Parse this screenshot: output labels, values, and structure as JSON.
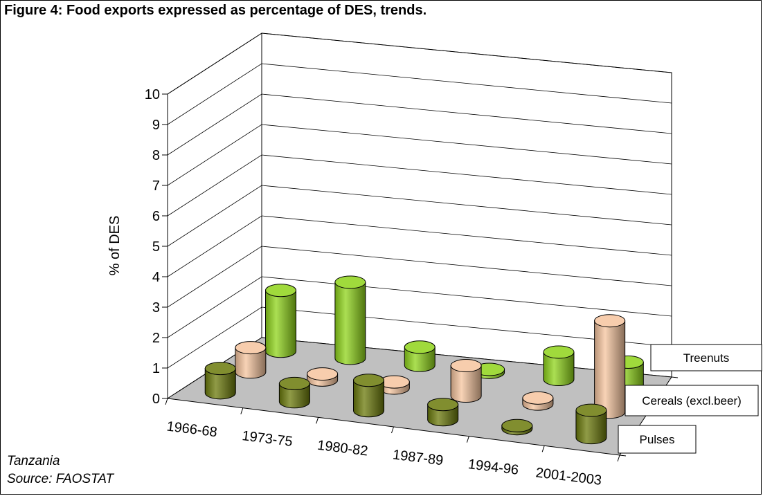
{
  "title": "Figure 4: Food exports expressed as percentage of DES, trends.",
  "notes": {
    "country": "Tanzania",
    "source": "Source: FAOSTAT"
  },
  "chart_data": {
    "type": "bar",
    "style": "3d-cylinder",
    "categories": [
      "1966-68",
      "1973-75",
      "1980-82",
      "1987-89",
      "1994-96",
      "2001-2003"
    ],
    "ylabel": "% of DES",
    "ylim": [
      0,
      10
    ],
    "yticks": [
      0,
      1,
      2,
      3,
      4,
      5,
      6,
      7,
      8,
      9,
      10
    ],
    "grid": true,
    "series": [
      {
        "name": "Pulses",
        "color": "#6b7a0a",
        "values": [
          0.8,
          0.6,
          1.0,
          0.5,
          0.1,
          0.9
        ]
      },
      {
        "name": "Cereals (excl.beer)",
        "color": "#f5c49e",
        "values": [
          0.8,
          0.2,
          0.2,
          1.0,
          0.2,
          3.0
        ]
      },
      {
        "name": "Treenuts",
        "color": "#8fd41a",
        "values": [
          2.0,
          2.5,
          0.6,
          0.1,
          0.9,
          0.8
        ]
      }
    ]
  }
}
